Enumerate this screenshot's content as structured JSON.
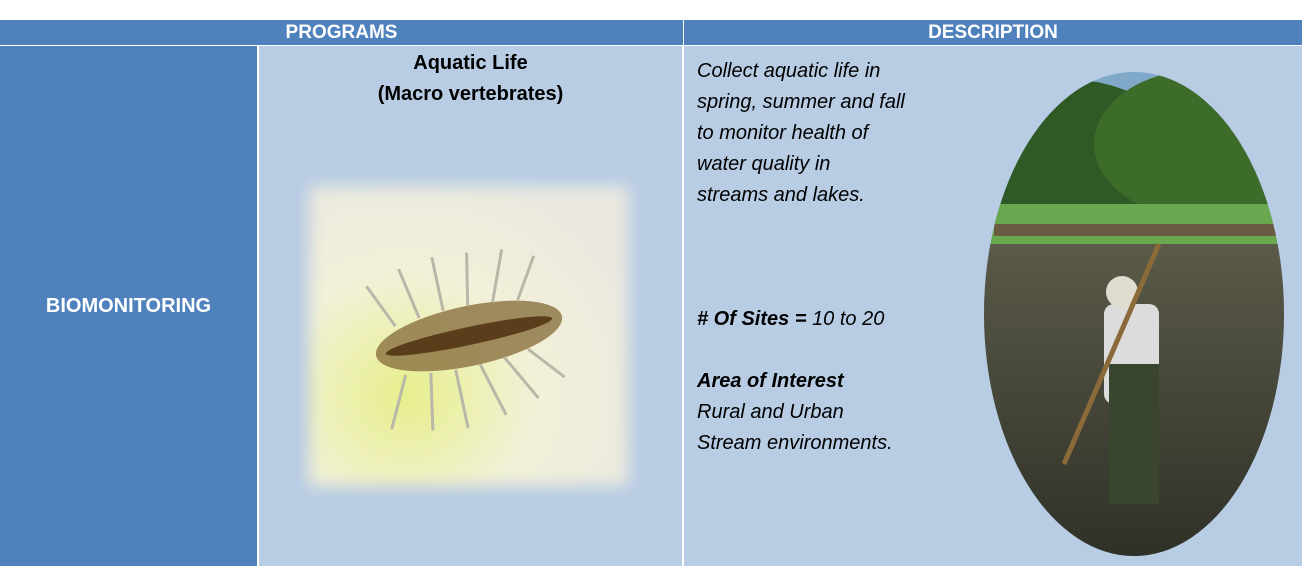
{
  "header": {
    "columns": [
      "PROGRAMS",
      "DESCRIPTION"
    ]
  },
  "rows": [
    {
      "program": "BIOMONITORING",
      "title": [
        "Aquatic Life",
        "(Macro vertebrates)"
      ],
      "description": [
        "Collect aquatic life in",
        "spring, summer and fall",
        "to monitor health of",
        "water quality in",
        "streams and lakes."
      ],
      "sites_label": "# Of Sites =",
      "sites_value": "10 to 20",
      "area_heading": "Area of Interest",
      "area_text": [
        "Rural and Urban",
        "Stream environments."
      ]
    }
  ]
}
